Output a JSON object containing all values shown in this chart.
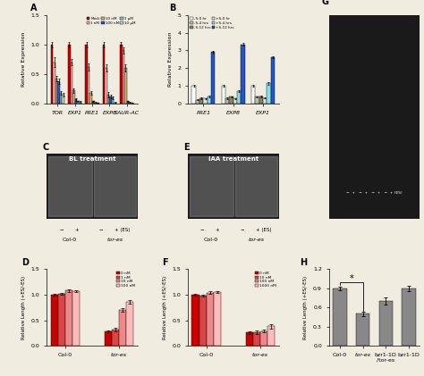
{
  "panel_A": {
    "genes": [
      "TOR",
      "EXP1",
      "PRE1",
      "EXP8",
      "SAUR-AC"
    ],
    "conditions": [
      "Mock",
      "1 nM",
      "10 nM",
      "100 nM",
      "1 μM",
      "10 μM"
    ],
    "colors": [
      "#cc0000",
      "#ffaaaa",
      "#d4a96a",
      "#3355bb",
      "#66ccdd",
      "#ccccaa"
    ],
    "values": [
      [
        1.0,
        0.7,
        0.42,
        0.38,
        0.18,
        0.15
      ],
      [
        1.0,
        0.7,
        0.22,
        0.07,
        0.04,
        0.03
      ],
      [
        1.0,
        0.62,
        0.18,
        0.04,
        0.02,
        0.01
      ],
      [
        1.0,
        0.6,
        0.15,
        0.12,
        0.1,
        0.02
      ],
      [
        1.0,
        0.9,
        0.6,
        0.04,
        0.02,
        0.01
      ]
    ],
    "errors": [
      [
        0.05,
        0.08,
        0.05,
        0.05,
        0.03,
        0.03
      ],
      [
        0.05,
        0.05,
        0.04,
        0.02,
        0.01,
        0.01
      ],
      [
        0.05,
        0.06,
        0.03,
        0.01,
        0.01,
        0.005
      ],
      [
        0.05,
        0.06,
        0.04,
        0.03,
        0.02,
        0.01
      ],
      [
        0.05,
        0.06,
        0.06,
        0.01,
        0.01,
        0.005
      ]
    ],
    "ylabel": "Relative Expression",
    "ylim": [
      0,
      1.5
    ]
  },
  "panel_B": {
    "genes": [
      "PRE1",
      "EXP8",
      "EXP1"
    ],
    "conditions": [
      "-S-0 hr",
      "-S-4 hrs",
      "-S-12 hrs",
      "+S-0 hr",
      "+S-4 hrs",
      "+S-12 hrs"
    ],
    "colors": [
      "#ffffff",
      "#bbbbaa",
      "#888866",
      "#dddddd",
      "#88ddee",
      "#2255cc"
    ],
    "values": [
      [
        1.0,
        0.22,
        0.3,
        0.28,
        0.4,
        2.9
      ],
      [
        1.0,
        0.3,
        0.38,
        0.28,
        0.7,
        3.35
      ],
      [
        1.0,
        0.38,
        0.4,
        0.32,
        1.15,
        2.62
      ]
    ],
    "errors": [
      [
        0.05,
        0.03,
        0.04,
        0.04,
        0.04,
        0.06
      ],
      [
        0.05,
        0.04,
        0.04,
        0.04,
        0.06,
        0.07
      ],
      [
        0.05,
        0.04,
        0.05,
        0.04,
        0.07,
        0.07
      ]
    ],
    "ylabel": "Relative Expression",
    "ylim": [
      0,
      5
    ]
  },
  "panel_D": {
    "groups": [
      "Col-0",
      "tor-es"
    ],
    "conditions": [
      "0 nM",
      "1 nM",
      "10 nM",
      "100 nM"
    ],
    "colors": [
      "#cc0000",
      "#dd4444",
      "#ee8888",
      "#ffbbbb"
    ],
    "col0_values": [
      1.0,
      1.02,
      1.08,
      1.07
    ],
    "tores_values": [
      0.28,
      0.32,
      0.7,
      0.86
    ],
    "col0_errors": [
      0.02,
      0.02,
      0.03,
      0.02
    ],
    "tores_errors": [
      0.03,
      0.03,
      0.04,
      0.04
    ],
    "ylabel": "Relative Length (+ES/-ES)",
    "ylim": [
      0,
      1.5
    ]
  },
  "panel_F": {
    "groups": [
      "Col-0",
      "tor-es"
    ],
    "conditions": [
      "0 nM",
      "10 nM",
      "100 nM",
      "1000 nM"
    ],
    "colors": [
      "#cc0000",
      "#dd4444",
      "#ee8888",
      "#ffbbbb"
    ],
    "col0_values": [
      1.0,
      0.98,
      1.04,
      1.05
    ],
    "tores_values": [
      0.26,
      0.27,
      0.29,
      0.38
    ],
    "col0_errors": [
      0.02,
      0.02,
      0.02,
      0.02
    ],
    "tores_errors": [
      0.03,
      0.03,
      0.03,
      0.04
    ],
    "ylabel": "Relative Length (+ES/-ES)",
    "ylim": [
      0,
      1.5
    ]
  },
  "panel_H": {
    "categories": [
      "Col-0",
      "tor-es",
      "bzr1-1D\n/tor-es",
      "bzr1-1D"
    ],
    "values": [
      0.9,
      0.5,
      0.7,
      0.9
    ],
    "errors": [
      0.03,
      0.04,
      0.05,
      0.04
    ],
    "color": "#888888",
    "ylabel": "Relative Length (+ES/-ES)",
    "ylim": [
      0,
      1.2
    ]
  },
  "bg_color": "#f0ede0",
  "photo_color": "#1a1a1a"
}
